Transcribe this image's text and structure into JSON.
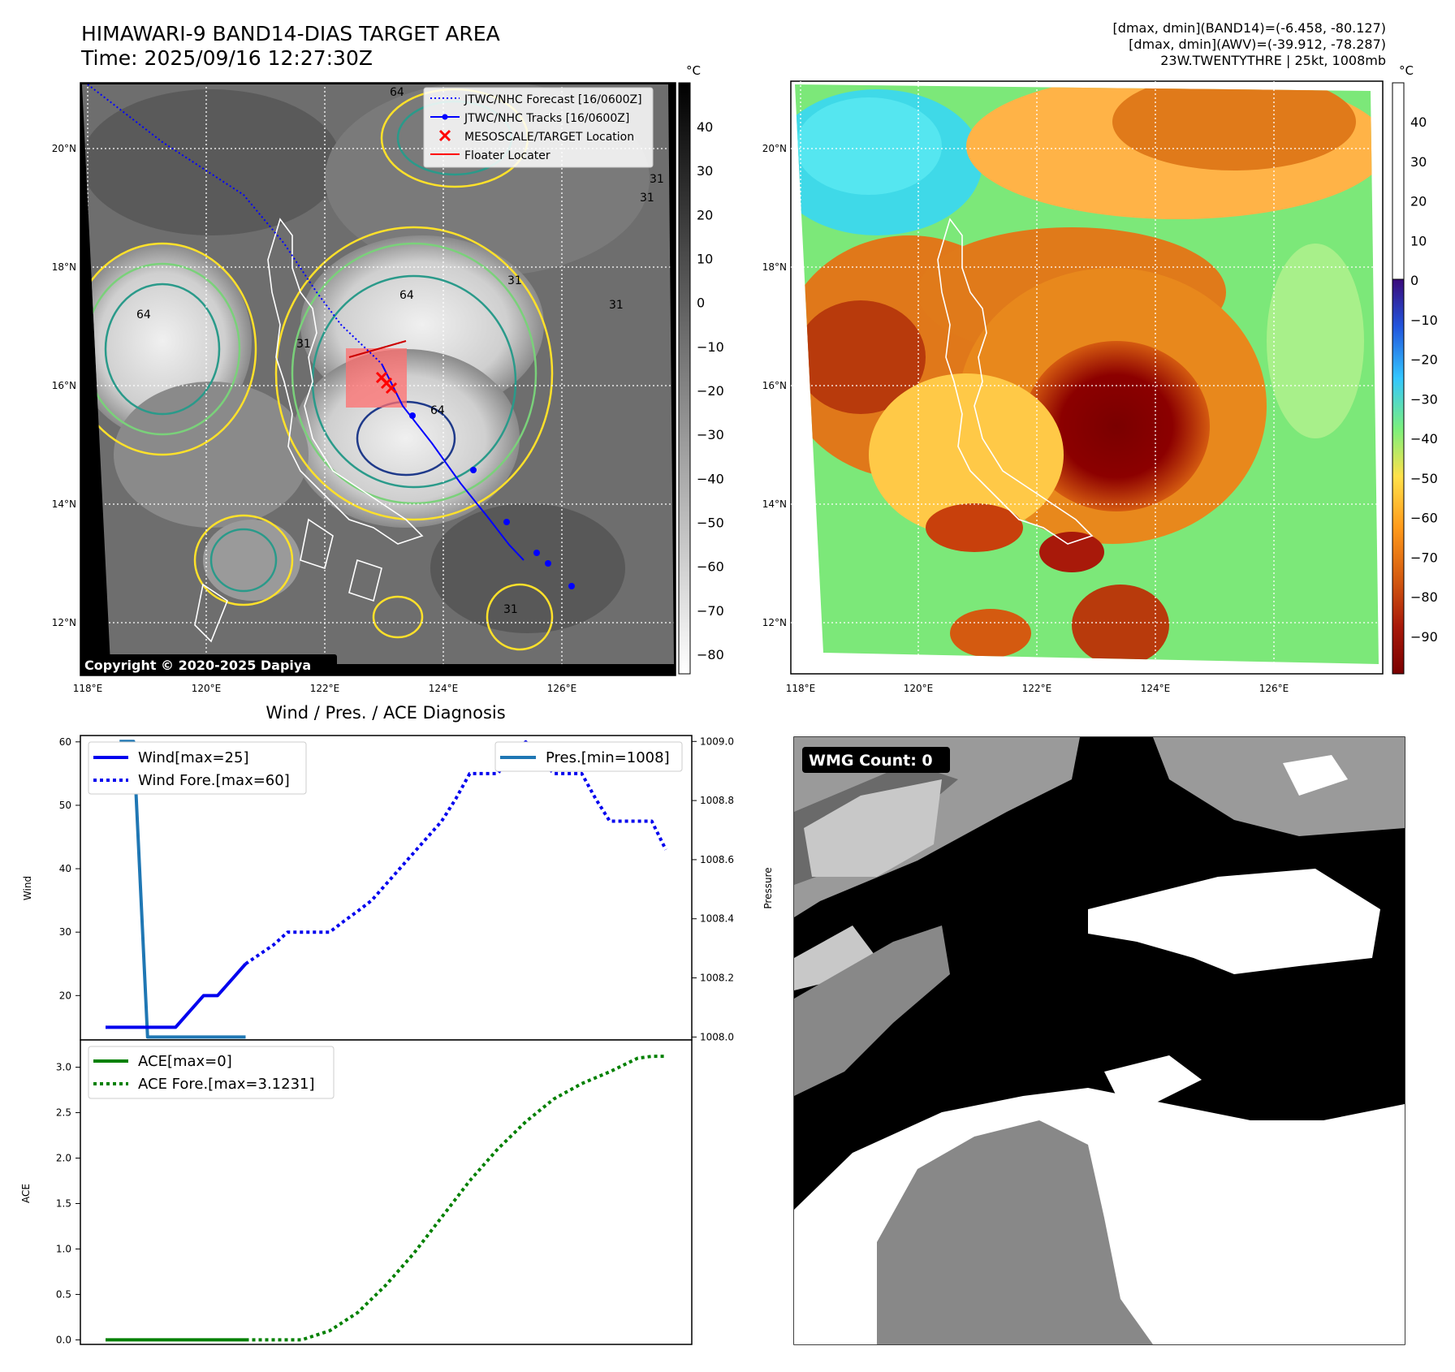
{
  "header": {
    "title_line1": "HIMAWARI-9 BAND14-DIAS TARGET AREA",
    "title_line2": "Time: 2025/09/16 12:27:30Z",
    "info_line1": "[dmax, dmin](BAND14)=(-6.458, -80.127)",
    "info_line2": "[dmax, dmin](AWV)=(-39.912, -78.287)",
    "info_line3": "23W.TWENTYTHRE | 25kt, 1008mb"
  },
  "map_left": {
    "colorbar_unit": "°C",
    "colorbar_ticks": [
      "40",
      "30",
      "20",
      "10",
      "0",
      "−10",
      "−20",
      "−30",
      "−40",
      "−50",
      "−60",
      "−70",
      "−80"
    ],
    "lat_labels": [
      "20°N",
      "18°N",
      "16°N",
      "14°N",
      "12°N"
    ],
    "lon_labels": [
      "118°E",
      "120°E",
      "122°E",
      "124°E",
      "126°E"
    ],
    "legend": [
      "JTWC/NHC Forecast [16/0600Z]",
      "JTWC/NHC Tracks [16/0600Z]",
      "MESOSCALE/TARGET Location",
      "Floater Locater"
    ],
    "copyright": "Copyright © 2020-2025 Dapiya",
    "contour_labels": [
      "64",
      "31",
      "31",
      "64",
      "31",
      "31",
      "64",
      "64",
      "31",
      "31"
    ]
  },
  "map_right": {
    "colorbar_unit": "°C",
    "colorbar_ticks": [
      "40",
      "30",
      "20",
      "10",
      "0",
      "−10",
      "−20",
      "−30",
      "−40",
      "−50",
      "−60",
      "−70",
      "−80",
      "−90"
    ],
    "lat_labels": [
      "20°N",
      "18°N",
      "16°N",
      "14°N",
      "12°N"
    ],
    "lon_labels": [
      "118°E",
      "120°E",
      "122°E",
      "124°E",
      "126°E"
    ]
  },
  "wmg": {
    "count_label": "WMG Count: 0"
  },
  "colors": {
    "wind": "#0000ee",
    "pressure": "#1f77b4",
    "ace": "#008000",
    "track": "#0000ff",
    "target": "#ff0000"
  },
  "chart_data": [
    {
      "type": "line",
      "title": "Wind / Pres. / ACE Diagnosis",
      "ylabel": "Wind",
      "y2label": "Pressure",
      "ylim": [
        13,
        61
      ],
      "y2lim": [
        1007.99,
        1009.02
      ],
      "yticks": [
        "20",
        "30",
        "40",
        "50",
        "60"
      ],
      "y2ticks": [
        "1008.0",
        "1008.2",
        "1008.4",
        "1008.6",
        "1008.8",
        "1009.0"
      ],
      "legend_left": [
        "Wind[max=25]",
        "Wind Fore.[max=60]"
      ],
      "legend_right": [
        "Pres.[min=1008]"
      ],
      "x": [
        0,
        1,
        2,
        3,
        4,
        5,
        6,
        7,
        8,
        9,
        10,
        11,
        12,
        13,
        14,
        15,
        16,
        17,
        18,
        19,
        20,
        21,
        22,
        23,
        24,
        25,
        26,
        27,
        28,
        29,
        30,
        31,
        32,
        33,
        34,
        35,
        36,
        37,
        38,
        39,
        40
      ],
      "series": [
        {
          "name": "Wind[max=25]",
          "style": "solid",
          "x": [
            0,
            1,
            2,
            3,
            4,
            5,
            6,
            7,
            8,
            9,
            10
          ],
          "values": [
            15,
            15,
            15,
            15,
            15,
            15,
            17.5,
            20,
            20,
            22.5,
            25
          ]
        },
        {
          "name": "Wind Fore.[max=60]",
          "style": "dotted",
          "x": [
            10,
            11,
            12,
            13,
            14,
            15,
            16,
            17,
            18,
            19,
            20,
            21,
            22,
            23,
            24,
            25,
            26,
            27,
            28,
            29,
            30,
            31,
            32,
            33,
            34,
            35,
            36,
            37,
            38,
            39,
            40
          ],
          "values": [
            25,
            26.5,
            28,
            30,
            30,
            30,
            30,
            31.7,
            33.3,
            35,
            37.5,
            40,
            42.5,
            45,
            47.5,
            51,
            55,
            55,
            55,
            58,
            60,
            57.5,
            55,
            55,
            55,
            51,
            47.5,
            47.5,
            47.5,
            47.5,
            43
          ]
        },
        {
          "name": "Pres.[min=1008]",
          "axis": "y2",
          "style": "solid",
          "x": [
            1,
            2,
            3,
            4,
            5,
            6,
            7,
            8,
            9,
            10
          ],
          "values": [
            1009,
            1009,
            1008,
            1008,
            1008,
            1008,
            1008,
            1008,
            1008,
            1008
          ]
        }
      ]
    },
    {
      "type": "line",
      "ylabel": "ACE",
      "ylim": [
        -0.05,
        3.3
      ],
      "yticks": [
        "0.0",
        "0.5",
        "1.0",
        "1.5",
        "2.0",
        "2.5",
        "3.0"
      ],
      "legend": [
        "ACE[max=0]",
        "ACE Fore.[max=3.1231]"
      ],
      "series": [
        {
          "name": "ACE[max=0]",
          "style": "solid",
          "x": [
            0,
            10
          ],
          "values": [
            0,
            0
          ]
        },
        {
          "name": "ACE Fore.[max=3.1231]",
          "style": "dotted",
          "x": [
            10,
            14,
            16,
            18,
            20,
            22,
            24,
            26,
            28,
            30,
            32,
            34,
            36,
            38,
            39,
            40
          ],
          "values": [
            0,
            0,
            0.1,
            0.3,
            0.6,
            0.95,
            1.35,
            1.75,
            2.1,
            2.4,
            2.65,
            2.82,
            2.95,
            3.1,
            3.12,
            3.12
          ]
        }
      ]
    }
  ]
}
